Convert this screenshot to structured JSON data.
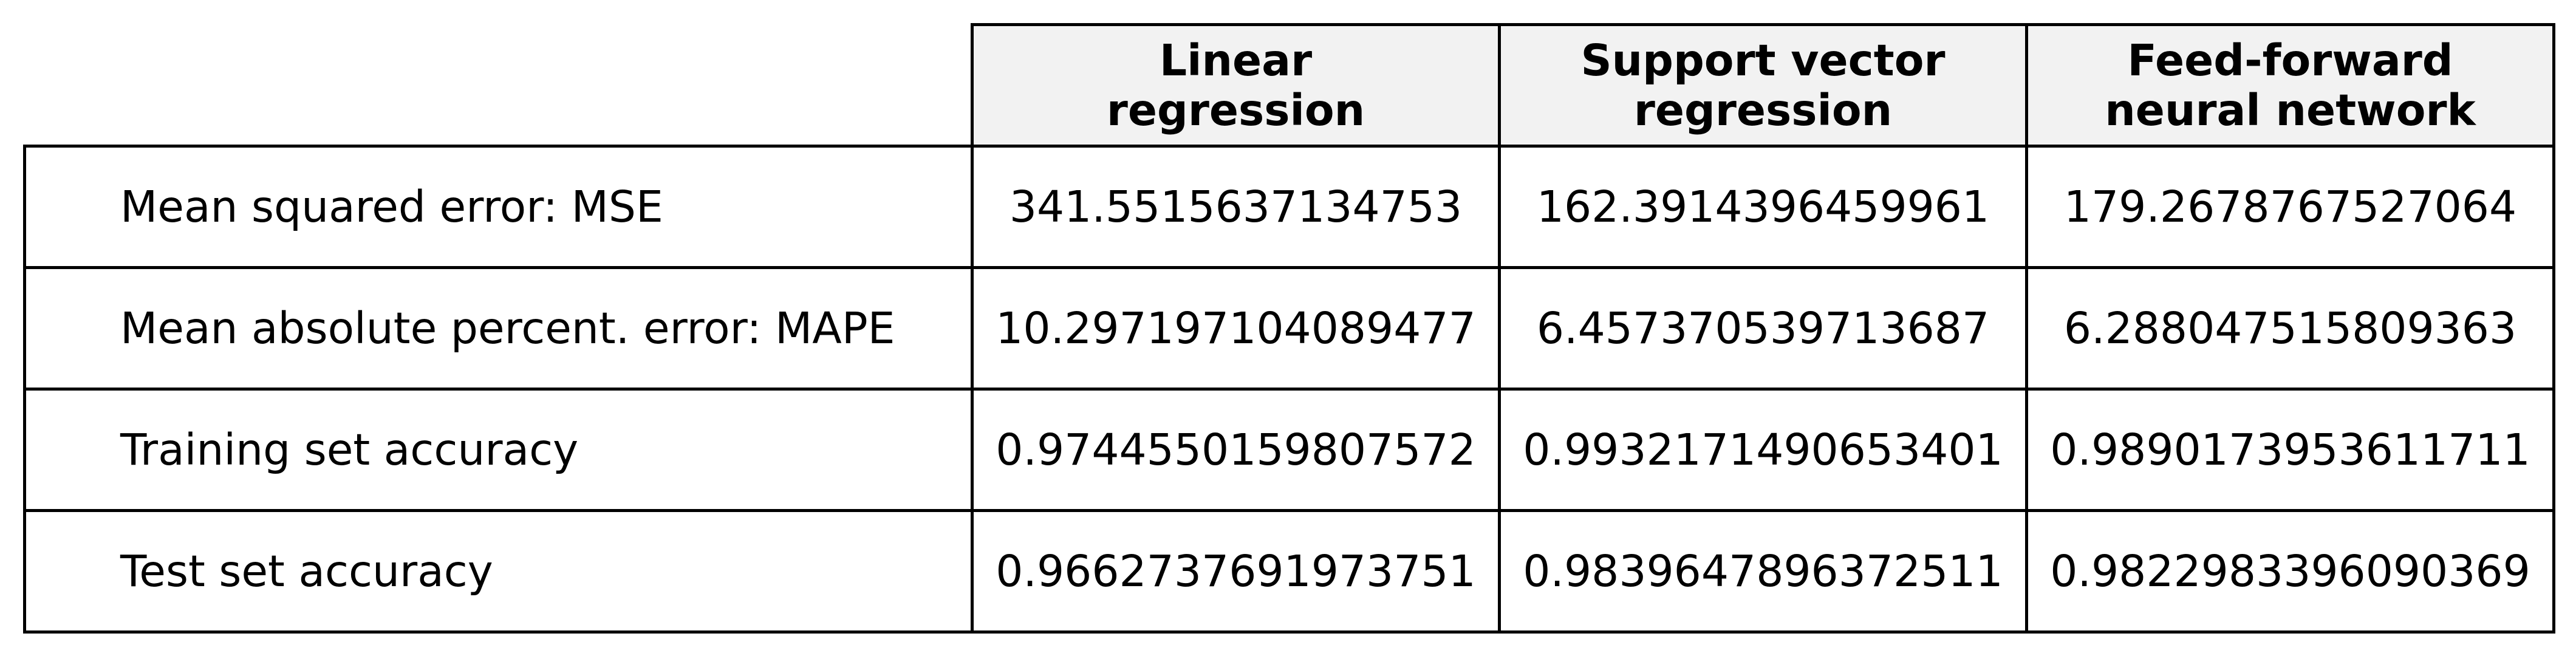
{
  "chart_data": {
    "type": "table",
    "columns": [
      {
        "line1": "Linear",
        "line2": "regression"
      },
      {
        "line1": "Support vector",
        "line2": "regression"
      },
      {
        "line1": "Feed-forward",
        "line2": "neural network"
      }
    ],
    "rows": [
      {
        "label": "Mean squared error: MSE",
        "values": [
          "341.5515637134753",
          "162.3914396459961",
          "179.2678767527064"
        ]
      },
      {
        "label": "Mean absolute percent. error: MAPE",
        "values": [
          "10.297197104089477",
          "6.457370539713687",
          "6.288047515809363"
        ]
      },
      {
        "label": "Training set accuracy",
        "values": [
          "0.9744550159807572",
          "0.9932171490653401",
          "0.9890173953611711"
        ]
      },
      {
        "label": "Test set accuracy",
        "values": [
          "0.9662737691973751",
          "0.9839647896372511",
          "0.9822983396090369"
        ]
      }
    ],
    "header_background": "#f2f2f2",
    "border_color": "#000000"
  }
}
